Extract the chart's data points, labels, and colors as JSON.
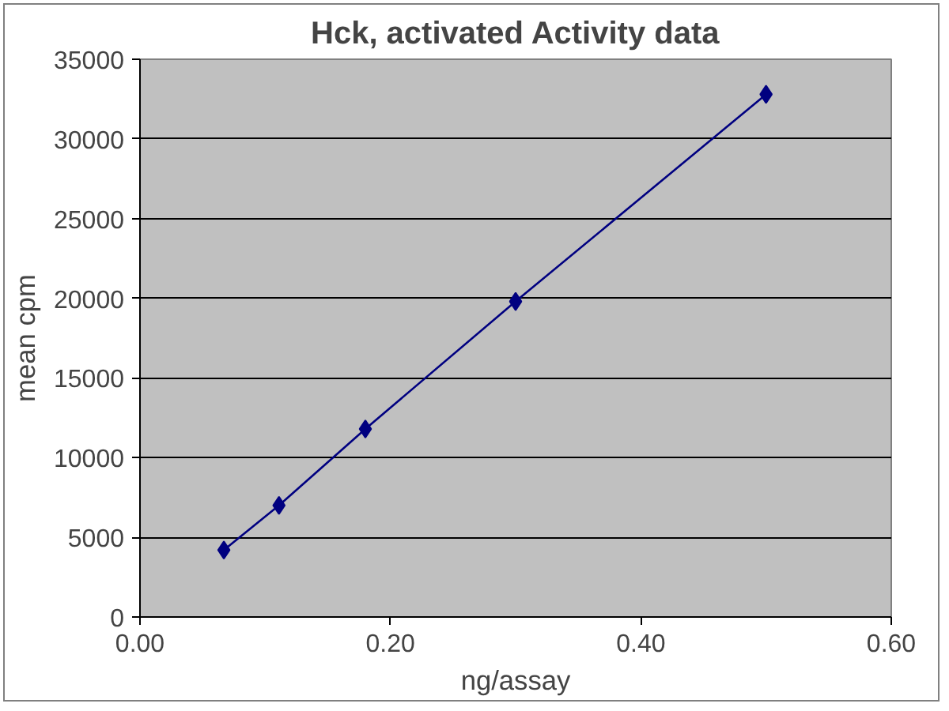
{
  "chart_data": {
    "type": "line",
    "title": "Hck, activated Activity data",
    "xlabel": "ng/assay",
    "ylabel": "mean cpm",
    "x": [
      0.067,
      0.111,
      0.18,
      0.3,
      0.5
    ],
    "series": [
      {
        "color": "#000080",
        "values": [
          4200,
          7000,
          11800,
          19800,
          32800
        ]
      }
    ],
    "xlim": [
      0,
      0.6
    ],
    "xticks": [
      {
        "value": 0,
        "label": "0.00"
      },
      {
        "value": 0.2,
        "label": "0.20"
      },
      {
        "value": 0.4,
        "label": "0.40"
      },
      {
        "value": 0.6,
        "label": "0.60"
      }
    ],
    "ylim": [
      0,
      35000
    ],
    "yticks": [
      0,
      5000,
      10000,
      15000,
      20000,
      25000,
      30000,
      35000
    ],
    "grid": "y",
    "marker": "diamond",
    "line_style": "solid"
  }
}
